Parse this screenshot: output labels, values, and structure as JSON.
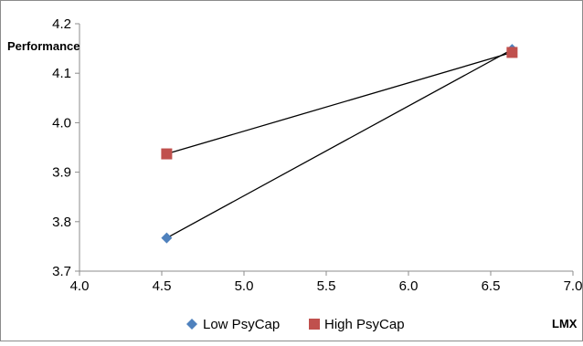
{
  "chart_data": {
    "type": "line",
    "xlabel": "LMX",
    "ylabel": "Performance",
    "xlim": [
      4.0,
      7.0
    ],
    "ylim": [
      3.7,
      4.2
    ],
    "xticks": [
      "4.0",
      "4.5",
      "5.0",
      "5.5",
      "6.0",
      "6.5",
      "7.0"
    ],
    "yticks": [
      "3.7",
      "3.8",
      "3.9",
      "4.0",
      "4.1",
      "4.2"
    ],
    "grid": false,
    "legend_position": "bottom",
    "series": [
      {
        "name": "Low PsyCap",
        "marker": "diamond",
        "color": "#4F81BD",
        "x": [
          4.53,
          6.63
        ],
        "y": [
          3.767,
          4.148
        ]
      },
      {
        "name": "High PsyCap",
        "marker": "square",
        "color": "#C0504D",
        "x": [
          4.53,
          6.63
        ],
        "y": [
          3.937,
          4.142
        ]
      }
    ]
  }
}
